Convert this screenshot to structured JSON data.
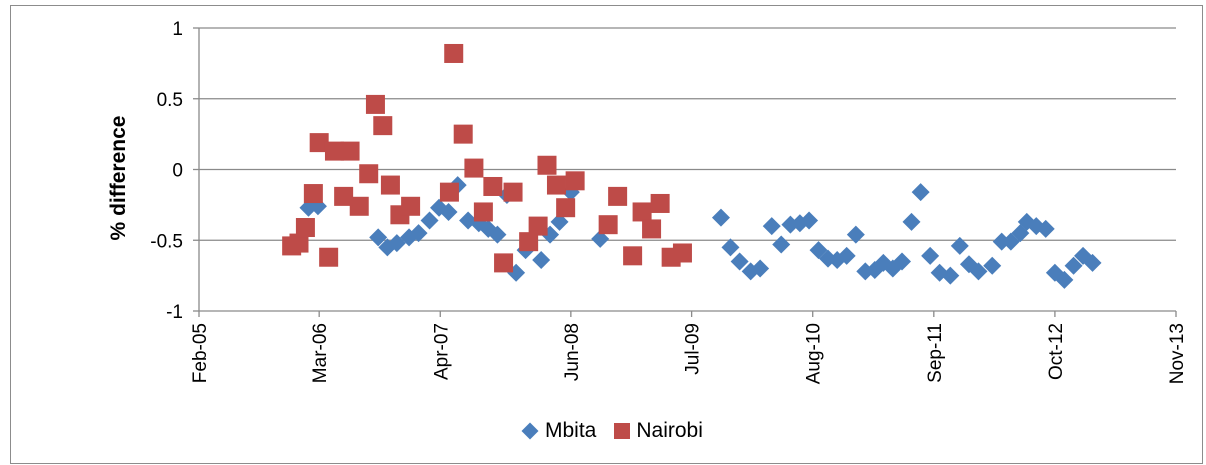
{
  "chart_data": {
    "type": "scatter",
    "ylabel": "% difference",
    "xlabel": "",
    "ylim": [
      -1,
      1
    ],
    "yticks": [
      1,
      0.5,
      0,
      -0.5,
      -1
    ],
    "ytick_labels": [
      "1",
      "0.5",
      "0",
      "-0.5",
      "-1"
    ],
    "xlim": [
      "2005-02-01",
      "2013-11-01"
    ],
    "xticks": [
      "2005-02-01",
      "2006-03-01",
      "2007-04-01",
      "2008-06-01",
      "2009-07-01",
      "2010-08-01",
      "2011-09-01",
      "2012-10-01",
      "2013-11-01"
    ],
    "xtick_labels": [
      "Feb-05",
      "Mar-06",
      "Apr-07",
      "Jun-08",
      "Jul-09",
      "Aug-10",
      "Sep-11",
      "Oct-12",
      "Nov-13"
    ],
    "grid": "horizontal",
    "legend_position": "bottom",
    "series": [
      {
        "name": "Mbita",
        "marker": "diamond",
        "color": "#4a7ebb",
        "points": [
          {
            "x": "2006-01-25",
            "y": -0.27
          },
          {
            "x": "2006-02-25",
            "y": -0.26
          },
          {
            "x": "2006-09-10",
            "y": -0.48
          },
          {
            "x": "2006-10-10",
            "y": -0.55
          },
          {
            "x": "2006-11-10",
            "y": -0.52
          },
          {
            "x": "2006-12-20",
            "y": -0.48
          },
          {
            "x": "2007-01-20",
            "y": -0.45
          },
          {
            "x": "2007-02-25",
            "y": -0.36
          },
          {
            "x": "2007-03-28",
            "y": -0.27
          },
          {
            "x": "2007-04-28",
            "y": -0.3
          },
          {
            "x": "2007-05-28",
            "y": -0.11
          },
          {
            "x": "2007-07-01",
            "y": -0.36
          },
          {
            "x": "2007-08-05",
            "y": -0.38
          },
          {
            "x": "2007-09-05",
            "y": -0.42
          },
          {
            "x": "2007-10-05",
            "y": -0.46
          },
          {
            "x": "2007-11-05",
            "y": -0.18
          },
          {
            "x": "2007-12-05",
            "y": -0.73
          },
          {
            "x": "2008-01-05",
            "y": -0.57
          },
          {
            "x": "2008-02-25",
            "y": -0.64
          },
          {
            "x": "2008-03-25",
            "y": -0.46
          },
          {
            "x": "2008-04-25",
            "y": -0.37
          },
          {
            "x": "2008-06-01",
            "y": -0.16
          },
          {
            "x": "2008-09-05",
            "y": -0.49
          },
          {
            "x": "2009-10-05",
            "y": -0.34
          },
          {
            "x": "2009-11-05",
            "y": -0.55
          },
          {
            "x": "2009-12-05",
            "y": -0.65
          },
          {
            "x": "2010-01-10",
            "y": -0.72
          },
          {
            "x": "2010-02-10",
            "y": -0.7
          },
          {
            "x": "2010-03-20",
            "y": -0.4
          },
          {
            "x": "2010-04-20",
            "y": -0.53
          },
          {
            "x": "2010-05-20",
            "y": -0.39
          },
          {
            "x": "2010-06-20",
            "y": -0.38
          },
          {
            "x": "2010-07-20",
            "y": -0.36
          },
          {
            "x": "2010-08-20",
            "y": -0.57
          },
          {
            "x": "2010-09-20",
            "y": -0.63
          },
          {
            "x": "2010-10-20",
            "y": -0.64
          },
          {
            "x": "2010-11-20",
            "y": -0.61
          },
          {
            "x": "2010-12-20",
            "y": -0.46
          },
          {
            "x": "2011-01-20",
            "y": -0.72
          },
          {
            "x": "2011-02-20",
            "y": -0.71
          },
          {
            "x": "2011-03-20",
            "y": -0.66
          },
          {
            "x": "2011-04-20",
            "y": -0.7
          },
          {
            "x": "2011-05-20",
            "y": -0.65
          },
          {
            "x": "2011-06-20",
            "y": -0.37
          },
          {
            "x": "2011-07-20",
            "y": -0.16
          },
          {
            "x": "2011-08-20",
            "y": -0.61
          },
          {
            "x": "2011-09-20",
            "y": -0.73
          },
          {
            "x": "2011-10-25",
            "y": -0.75
          },
          {
            "x": "2011-11-25",
            "y": -0.54
          },
          {
            "x": "2011-12-25",
            "y": -0.67
          },
          {
            "x": "2012-01-25",
            "y": -0.72
          },
          {
            "x": "2012-03-10",
            "y": -0.68
          },
          {
            "x": "2012-04-10",
            "y": -0.51
          },
          {
            "x": "2012-05-10",
            "y": -0.51
          },
          {
            "x": "2012-06-10",
            "y": -0.45
          },
          {
            "x": "2012-07-01",
            "y": -0.37
          },
          {
            "x": "2012-08-01",
            "y": -0.4
          },
          {
            "x": "2012-09-01",
            "y": -0.42
          },
          {
            "x": "2012-10-01",
            "y": -0.73
          },
          {
            "x": "2012-11-01",
            "y": -0.78
          },
          {
            "x": "2012-12-01",
            "y": -0.68
          },
          {
            "x": "2013-01-01",
            "y": -0.61
          },
          {
            "x": "2013-02-01",
            "y": -0.66
          }
        ]
      },
      {
        "name": "Nairobi",
        "marker": "square",
        "color": "#be4b48",
        "points": [
          {
            "x": "2005-12-01",
            "y": -0.54
          },
          {
            "x": "2005-12-25",
            "y": -0.52
          },
          {
            "x": "2006-01-15",
            "y": -0.41
          },
          {
            "x": "2006-02-10",
            "y": -0.17
          },
          {
            "x": "2006-03-01",
            "y": 0.19
          },
          {
            "x": "2006-04-01",
            "y": -0.62
          },
          {
            "x": "2006-04-20",
            "y": 0.13
          },
          {
            "x": "2006-05-20",
            "y": -0.19
          },
          {
            "x": "2006-06-10",
            "y": 0.13
          },
          {
            "x": "2006-07-10",
            "y": -0.26
          },
          {
            "x": "2006-08-10",
            "y": -0.03
          },
          {
            "x": "2006-09-01",
            "y": 0.46
          },
          {
            "x": "2006-09-25",
            "y": 0.31
          },
          {
            "x": "2006-10-20",
            "y": -0.11
          },
          {
            "x": "2006-11-20",
            "y": -0.32
          },
          {
            "x": "2006-12-25",
            "y": -0.26
          },
          {
            "x": "2007-05-01",
            "y": -0.16
          },
          {
            "x": "2007-05-15",
            "y": 0.82
          },
          {
            "x": "2007-06-15",
            "y": 0.25
          },
          {
            "x": "2007-07-20",
            "y": 0.01
          },
          {
            "x": "2007-08-20",
            "y": -0.3
          },
          {
            "x": "2007-09-20",
            "y": -0.12
          },
          {
            "x": "2007-10-25",
            "y": -0.66
          },
          {
            "x": "2007-11-25",
            "y": -0.16
          },
          {
            "x": "2008-01-15",
            "y": -0.51
          },
          {
            "x": "2008-02-15",
            "y": -0.4
          },
          {
            "x": "2008-03-15",
            "y": 0.03
          },
          {
            "x": "2008-04-15",
            "y": -0.11
          },
          {
            "x": "2008-05-15",
            "y": -0.27
          },
          {
            "x": "2008-06-15",
            "y": -0.08
          },
          {
            "x": "2008-10-01",
            "y": -0.39
          },
          {
            "x": "2008-11-01",
            "y": -0.19
          },
          {
            "x": "2008-12-20",
            "y": -0.61
          },
          {
            "x": "2009-01-20",
            "y": -0.3
          },
          {
            "x": "2009-02-20",
            "y": -0.42
          },
          {
            "x": "2009-03-20",
            "y": -0.24
          },
          {
            "x": "2009-04-25",
            "y": -0.62
          },
          {
            "x": "2009-06-01",
            "y": -0.59
          }
        ]
      }
    ]
  }
}
